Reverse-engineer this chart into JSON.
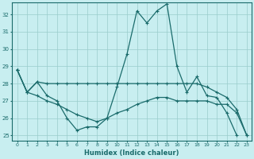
{
  "xlabel": "Humidex (Indice chaleur)",
  "bg_color": "#c8eef0",
  "grid_color": "#99cccc",
  "line_color": "#1a6b6b",
  "xlim": [
    -0.5,
    23.5
  ],
  "ylim": [
    24.7,
    32.7
  ],
  "yticks": [
    25,
    26,
    27,
    28,
    29,
    30,
    31,
    32
  ],
  "xticks": [
    0,
    1,
    2,
    3,
    4,
    5,
    6,
    7,
    8,
    9,
    10,
    11,
    12,
    13,
    14,
    15,
    16,
    17,
    18,
    19,
    20,
    21,
    22,
    23
  ],
  "series1_x": [
    0,
    1,
    2,
    3,
    4,
    5,
    6,
    7,
    8,
    9,
    10,
    11,
    12,
    13,
    14,
    15,
    16,
    17,
    18,
    19,
    20,
    21,
    22
  ],
  "series1_y": [
    28.8,
    27.5,
    28.1,
    27.3,
    27.0,
    26.0,
    25.3,
    25.5,
    25.5,
    26.0,
    27.8,
    29.7,
    32.2,
    31.5,
    32.2,
    32.6,
    29.0,
    27.5,
    28.4,
    27.3,
    27.2,
    26.3,
    25.0
  ],
  "series2_x": [
    0,
    1,
    2,
    3,
    4,
    5,
    6,
    7,
    8,
    9,
    10,
    11,
    12,
    13,
    14,
    15,
    16,
    17,
    18,
    19,
    20,
    21,
    22,
    23
  ],
  "series2_y": [
    28.8,
    27.5,
    28.1,
    28.0,
    28.0,
    28.0,
    28.0,
    28.0,
    28.0,
    28.0,
    28.0,
    28.0,
    28.0,
    28.0,
    28.0,
    28.0,
    28.0,
    28.0,
    28.0,
    27.8,
    27.5,
    27.2,
    26.5,
    25.0
  ],
  "series3_x": [
    0,
    1,
    2,
    3,
    4,
    5,
    6,
    7,
    8,
    9,
    10,
    11,
    12,
    13,
    14,
    15,
    16,
    17,
    18,
    19,
    20,
    21,
    22,
    23
  ],
  "series3_y": [
    28.8,
    27.5,
    27.3,
    27.0,
    26.8,
    26.5,
    26.2,
    26.0,
    25.8,
    26.0,
    26.3,
    26.5,
    26.8,
    27.0,
    27.2,
    27.2,
    27.0,
    27.0,
    27.0,
    27.0,
    26.8,
    26.8,
    26.3,
    25.0
  ]
}
